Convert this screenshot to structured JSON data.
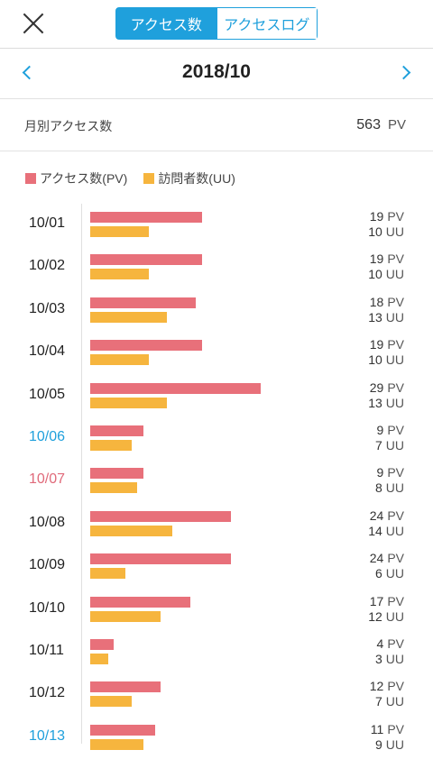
{
  "header": {
    "tabs": [
      {
        "label": "アクセス数",
        "active": true
      },
      {
        "label": "アクセスログ",
        "active": false
      }
    ]
  },
  "month": {
    "title": "2018/10"
  },
  "summary": {
    "label": "月別アクセス数",
    "value": "563",
    "unit": "PV"
  },
  "legend": {
    "pv": {
      "label": "アクセス数(PV)",
      "color": "#e8707a"
    },
    "uu": {
      "label": "訪問者数(UU)",
      "color": "#f6b53e"
    }
  },
  "units": {
    "pv": "PV",
    "uu": "UU"
  },
  "chart_data": {
    "type": "bar",
    "categories": [
      "10/01",
      "10/02",
      "10/03",
      "10/04",
      "10/05",
      "10/06",
      "10/07",
      "10/08",
      "10/09",
      "10/10",
      "10/11",
      "10/12",
      "10/13"
    ],
    "series": [
      {
        "name": "アクセス数(PV)",
        "values": [
          19,
          19,
          18,
          19,
          29,
          9,
          9,
          24,
          24,
          17,
          4,
          12,
          11
        ]
      },
      {
        "name": "訪問者数(UU)",
        "values": [
          10,
          10,
          13,
          10,
          13,
          7,
          8,
          14,
          6,
          12,
          3,
          7,
          9
        ]
      }
    ],
    "day_type": [
      "weekday",
      "weekday",
      "weekday",
      "weekday",
      "weekday",
      "sat",
      "sun",
      "weekday",
      "weekday",
      "weekday",
      "weekday",
      "weekday",
      "sat"
    ],
    "xmax": 29
  }
}
